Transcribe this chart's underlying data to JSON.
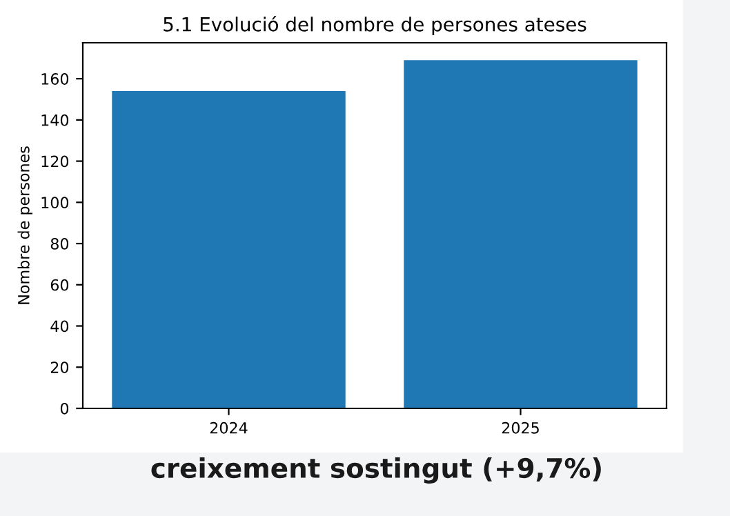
{
  "chart_data": {
    "type": "bar",
    "title": "5.1 Evolució del nombre de persones ateses",
    "ylabel": "Nombre de persones",
    "categories": [
      "2024",
      "2025"
    ],
    "values": [
      154,
      169
    ],
    "color": "#1f77b4",
    "ylim": [
      0,
      177.45
    ],
    "yticks": [
      0,
      20,
      40,
      60,
      80,
      100,
      120,
      140,
      160
    ],
    "grid": false,
    "legend": false,
    "annotations": [
      "creixement sostingut (+9,7%)"
    ]
  }
}
